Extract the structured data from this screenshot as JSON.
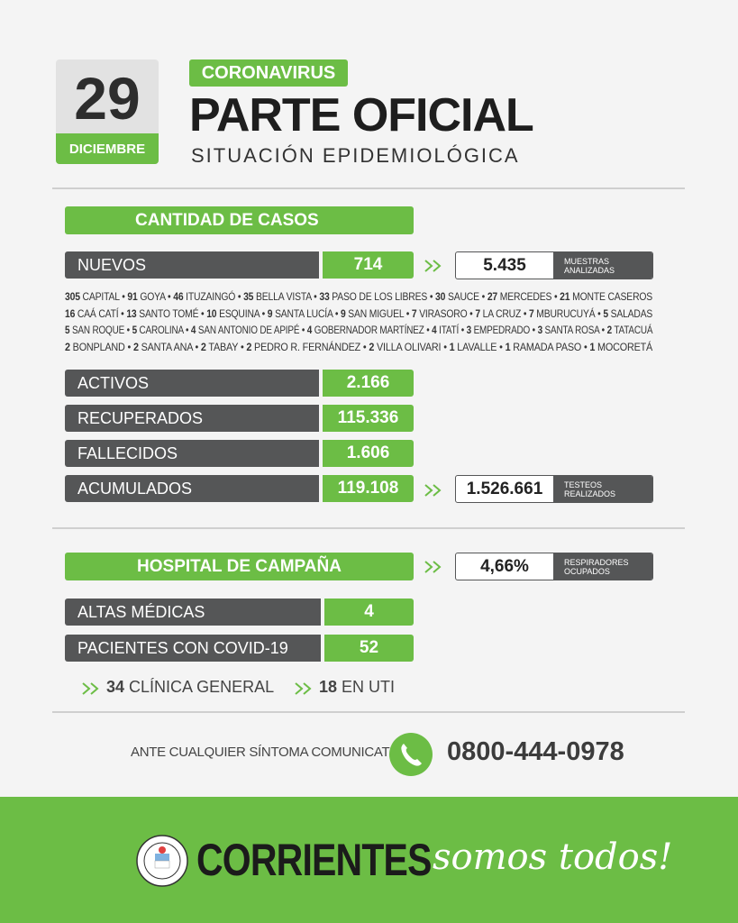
{
  "header": {
    "day": "29",
    "month": "DICIEMBRE",
    "tag": "CORONAVIRUS",
    "title": "PARTE OFICIAL",
    "subtitle": "SITUACIÓN EPIDEMIOLÓGICA"
  },
  "cases": {
    "title": "CANTIDAD DE CASOS",
    "new": {
      "label": "NUEVOS",
      "value": "714"
    },
    "samples": {
      "value": "5.435",
      "label": [
        "MUESTRAS",
        "ANALIZADAS"
      ]
    },
    "localities": [
      [
        {
          "count": "305",
          "name": "CAPITAL"
        },
        {
          "count": "91",
          "name": "GOYA"
        },
        {
          "count": "46",
          "name": "ITUZAINGÓ"
        },
        {
          "count": "35",
          "name": "BELLA VISTA"
        },
        {
          "count": "33",
          "name": "PASO DE LOS LIBRES"
        },
        {
          "count": "30",
          "name": "SAUCE"
        },
        {
          "count": "27",
          "name": "MERCEDES"
        },
        {
          "count": "21",
          "name": "MONTE CASEROS"
        }
      ],
      [
        {
          "count": "16",
          "name": "CAÁ CATÍ"
        },
        {
          "count": "13",
          "name": "SANTO TOMÉ"
        },
        {
          "count": "10",
          "name": "ESQUINA"
        },
        {
          "count": "9",
          "name": "SANTA LUCÍA"
        },
        {
          "count": "9",
          "name": "SAN MIGUEL"
        },
        {
          "count": "7",
          "name": "VIRASORO"
        },
        {
          "count": "7",
          "name": "LA CRUZ"
        },
        {
          "count": "7",
          "name": "MBURUCUYÁ"
        },
        {
          "count": "5",
          "name": "SALADAS"
        }
      ],
      [
        {
          "count": "5",
          "name": "SAN ROQUE"
        },
        {
          "count": "5",
          "name": "CAROLINA"
        },
        {
          "count": "4",
          "name": "SAN ANTONIO DE APIPÉ"
        },
        {
          "count": "4",
          "name": "GOBERNADOR MARTÍNEZ"
        },
        {
          "count": "4",
          "name": "ITATÍ"
        },
        {
          "count": "3",
          "name": "EMPEDRADO"
        },
        {
          "count": "3",
          "name": "SANTA ROSA"
        },
        {
          "count": "2",
          "name": "TATACUÁ"
        }
      ],
      [
        {
          "count": "2",
          "name": "BONPLAND"
        },
        {
          "count": "2",
          "name": "SANTA ANA"
        },
        {
          "count": "2",
          "name": "TABAY"
        },
        {
          "count": "2",
          "name": "PEDRO R. FERNÁNDEZ"
        },
        {
          "count": "2",
          "name": "VILLA OLIVARI"
        },
        {
          "count": "1",
          "name": "LAVALLE"
        },
        {
          "count": "1",
          "name": "RAMADA PASO"
        },
        {
          "count": "1",
          "name": "MOCORETÁ"
        }
      ]
    ],
    "stats": [
      {
        "label": "ACTIVOS",
        "value": "2.166"
      },
      {
        "label": "RECUPERADOS",
        "value": "115.336"
      },
      {
        "label": "FALLECIDOS",
        "value": "1.606"
      },
      {
        "label": "ACUMULADOS",
        "value": "119.108"
      }
    ],
    "tests": {
      "value": "1.526.661",
      "label": [
        "TESTEOS",
        "REALIZADOS"
      ]
    }
  },
  "hospital": {
    "title": "HOSPITAL DE CAMPAÑA",
    "respirators": {
      "value": "4,66%",
      "label": [
        "RESPIRADORES",
        "OCUPADOS"
      ]
    },
    "stats": [
      {
        "label": "ALTAS MÉDICAS",
        "value": "4"
      },
      {
        "label": "PACIENTES CON COVID-19",
        "value": "52"
      }
    ],
    "breakdown": [
      {
        "count": "34",
        "name": "CLÍNICA GENERAL"
      },
      {
        "count": "18",
        "name": "EN UTI"
      }
    ]
  },
  "contact": {
    "text": "ANTE CUALQUIER SÍNTOMA COMUNICATE AL",
    "phone": "0800-444-0978"
  },
  "footer": {
    "brand": "CORRIENTES",
    "slogan": "somos todos!"
  }
}
